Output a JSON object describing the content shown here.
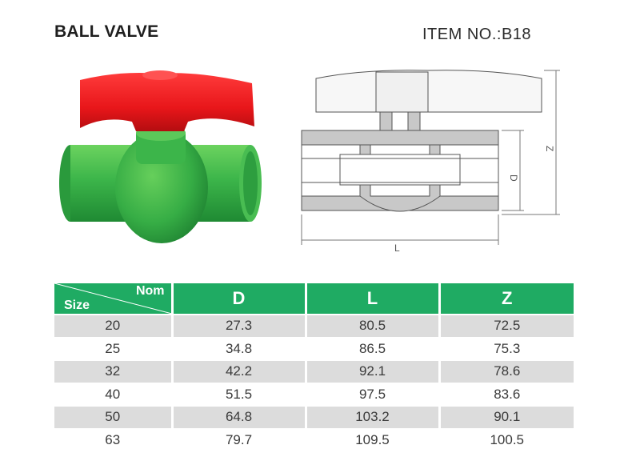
{
  "header": {
    "title": "BALL VALVE",
    "item_no": "ITEM NO.:B18"
  },
  "drawing": {
    "dim_d": "D",
    "dim_l": "L",
    "dim_z": "Z"
  },
  "table": {
    "corner_top": "Nom",
    "corner_bottom": "Size",
    "columns": [
      "D",
      "L",
      "Z"
    ],
    "rows": [
      {
        "size": "20",
        "d": "27.3",
        "l": "80.5",
        "z": "72.5"
      },
      {
        "size": "25",
        "d": "34.8",
        "l": "86.5",
        "z": "75.3"
      },
      {
        "size": "32",
        "d": "42.2",
        "l": "92.1",
        "z": "78.6"
      },
      {
        "size": "40",
        "d": "51.5",
        "l": "97.5",
        "z": "83.6"
      },
      {
        "size": "50",
        "d": "64.8",
        "l": "103.2",
        "z": "90.1"
      },
      {
        "size": "63",
        "d": "79.7",
        "l": "109.5",
        "z": "100.5"
      }
    ]
  },
  "colors": {
    "header_green": "#1fab63",
    "valve_green": "#43b84e",
    "handle_red": "#e8161a",
    "row_gray": "#dcdcdc"
  }
}
